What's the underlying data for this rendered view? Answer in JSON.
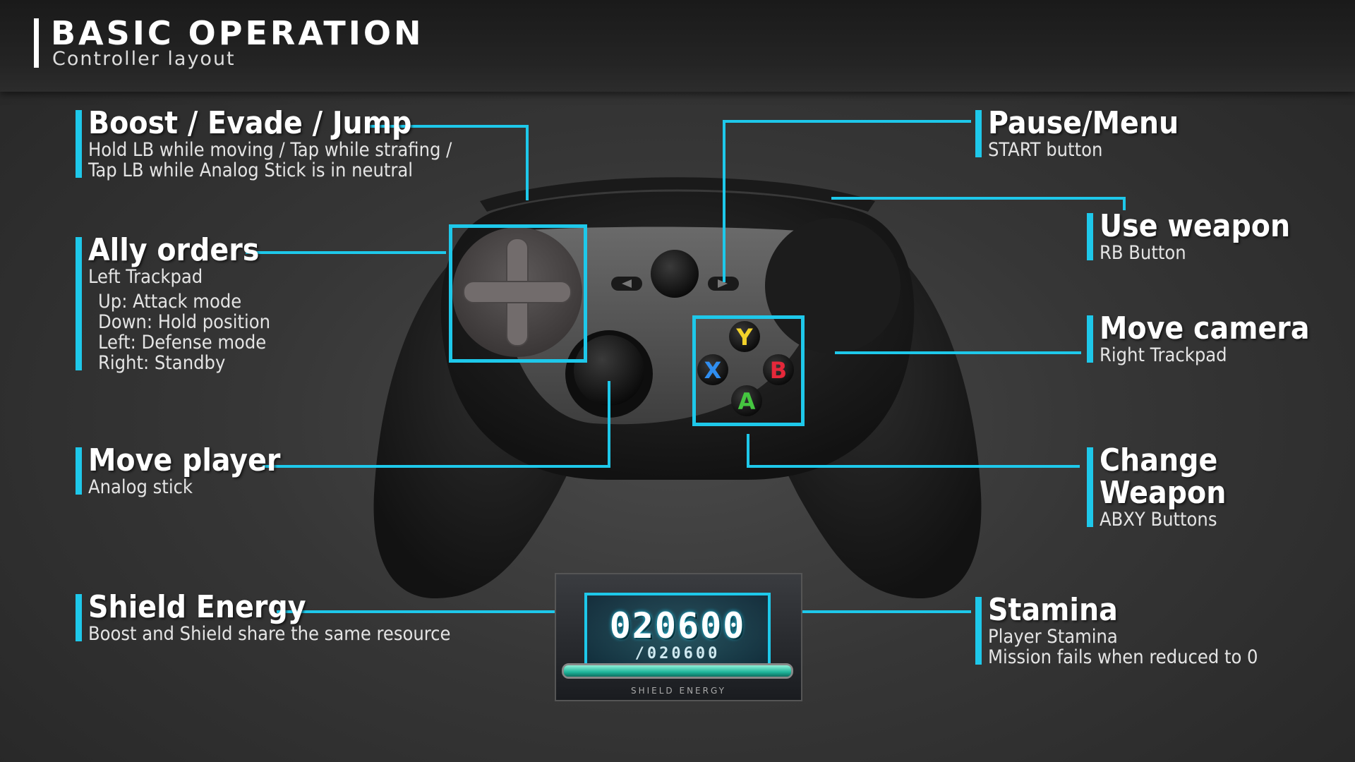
{
  "header": {
    "title": "BASIC OPERATION",
    "subtitle": "Controller layout"
  },
  "callouts": {
    "boost": {
      "title": "Boost / Evade / Jump",
      "desc1": "Hold LB while moving / Tap while strafing /",
      "desc2": "Tap LB while Analog Stick is in neutral"
    },
    "ally": {
      "title": "Ally orders",
      "desc": "Left Trackpad",
      "items": [
        "Up: Attack mode",
        "Down: Hold position",
        "Left: Defense mode",
        "Right: Standby"
      ]
    },
    "move_player": {
      "title": "Move player",
      "desc": "Analog stick"
    },
    "shield": {
      "title": "Shield Energy",
      "desc": "Boost and Shield share the same resource"
    },
    "pause": {
      "title": "Pause/Menu",
      "desc": "START button"
    },
    "use_weapon": {
      "title": "Use weapon",
      "desc": "RB Button"
    },
    "move_camera": {
      "title": "Move camera",
      "desc": "Right Trackpad"
    },
    "change_weapon": {
      "title1": "Change",
      "title2": "Weapon",
      "desc": "ABXY Buttons"
    },
    "stamina": {
      "title": "Stamina",
      "desc1": "Player Stamina",
      "desc2": "Mission fails when reduced to 0"
    }
  },
  "controller": {
    "buttons": {
      "y": "Y",
      "x": "X",
      "b": "B",
      "a": "A"
    },
    "colors": {
      "y": "#f2d22a",
      "x": "#2f8ef0",
      "b": "#e5283a",
      "a": "#45c640"
    }
  },
  "hud": {
    "value": "020600",
    "max": "/020600",
    "label": "SHIELD ENERGY",
    "fill": 1.0
  },
  "accent": "#1ec8ea"
}
